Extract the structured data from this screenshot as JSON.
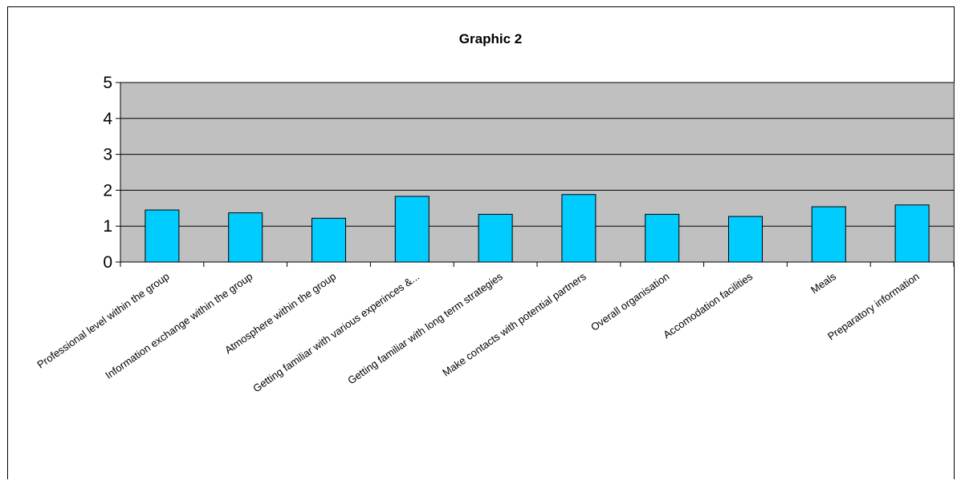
{
  "chart_data": {
    "type": "bar",
    "title": "Graphic 2",
    "xlabel": "",
    "ylabel": "",
    "ylim": [
      0,
      5
    ],
    "yticks": [
      "0",
      "1",
      "2",
      "3",
      "4",
      "5"
    ],
    "grid": true,
    "legend": "none",
    "categories": [
      "Professional level within the group",
      "Information exchange within the group",
      "Atmosphere within the group",
      "Getting familiar with various experinces &...",
      "Getting familiar with long term strategies",
      "Make contacts with potential partners",
      "Overall organisation",
      "Accomodation facilities",
      "Meals",
      "Preparatory information"
    ],
    "values": [
      1.45,
      1.37,
      1.22,
      1.83,
      1.33,
      1.88,
      1.33,
      1.27,
      1.54,
      1.59
    ],
    "colors": {
      "bar": "#00ccff",
      "plot_background": "#c0c0c0",
      "gridline": "#000000"
    }
  }
}
